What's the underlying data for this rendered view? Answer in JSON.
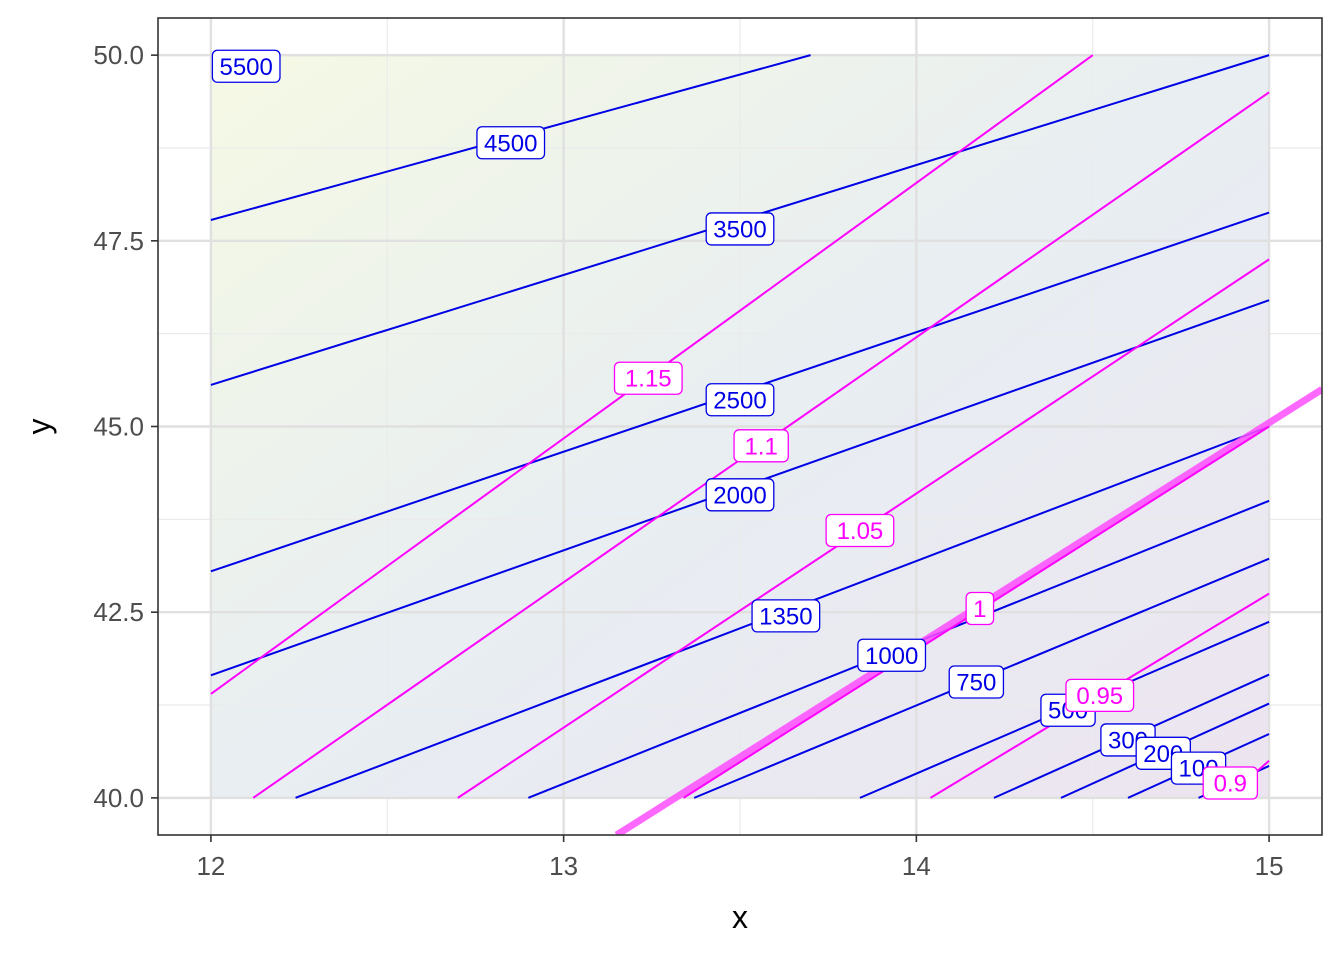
{
  "chart_data": {
    "type": "contour",
    "xlabel": "x",
    "ylabel": "y",
    "xlim": [
      11.85,
      15.15
    ],
    "ylim": [
      39.5,
      50.5
    ],
    "x_ticks": [
      12,
      13,
      14,
      15
    ],
    "x_tick_labels": [
      "12",
      "13",
      "14",
      "15"
    ],
    "y_ticks": [
      40,
      42.5,
      45,
      47.5,
      50
    ],
    "y_tick_labels": [
      "40.0",
      "42.5",
      "45.0",
      "47.5",
      "50.0"
    ],
    "grid": true,
    "theme": "bw",
    "background_gradient": {
      "top_left": "#f5f9e4",
      "middle": "#e8eef2",
      "bottom_right": "#ece4f0"
    },
    "colors": {
      "blue_series": "#0000e6",
      "magenta_series": "#ff00ff",
      "highlight": "#ff4dff"
    },
    "series": [
      {
        "group": "blue",
        "contours": [
          {
            "label": "5500",
            "points": [
              [
                12,
                49.9
              ]
            ],
            "label_at": [
              12.1,
              49.85
            ]
          },
          {
            "label": "4500",
            "points": [
              [
                12,
                47.78
              ],
              [
                13.7,
                50
              ]
            ],
            "label_at": [
              12.85,
              48.82
            ]
          },
          {
            "label": "3500",
            "points": [
              [
                12,
                45.56
              ],
              [
                15,
                50
              ]
            ],
            "label_at": [
              13.5,
              47.66
            ]
          },
          {
            "label": "2500",
            "points": [
              [
                12,
                43.05
              ],
              [
                15,
                47.88
              ]
            ],
            "label_at": [
              13.5,
              45.36
            ]
          },
          {
            "label": "2000",
            "points": [
              [
                12,
                41.65
              ],
              [
                15,
                46.7
              ]
            ],
            "label_at": [
              13.5,
              44.08
            ]
          },
          {
            "label": "1350",
            "points": [
              [
                12.24,
                40
              ],
              [
                15,
                45
              ]
            ],
            "label_at": [
              13.63,
              42.45
            ]
          },
          {
            "label": "1000",
            "points": [
              [
                12.9,
                40
              ],
              [
                15,
                44
              ]
            ],
            "label_at": [
              13.93,
              41.92
            ]
          },
          {
            "label": "750",
            "points": [
              [
                13.37,
                40
              ],
              [
                15,
                43.22
              ]
            ],
            "label_at": [
              14.17,
              41.56
            ]
          },
          {
            "label": "500",
            "points": [
              [
                13.84,
                40
              ],
              [
                15,
                42.37
              ]
            ],
            "label_at": [
              14.43,
              41.18
            ]
          },
          {
            "label": "300",
            "points": [
              [
                14.22,
                40
              ],
              [
                15,
                41.66
              ]
            ],
            "label_at": [
              14.6,
              40.78
            ]
          },
          {
            "label": "200",
            "points": [
              [
                14.41,
                40
              ],
              [
                15,
                41.27
              ]
            ],
            "label_at": [
              14.7,
              40.6
            ]
          },
          {
            "label": "100",
            "points": [
              [
                14.6,
                40
              ],
              [
                15,
                40.86
              ]
            ],
            "label_at": [
              14.8,
              40.4
            ]
          },
          {
            "label": "",
            "points": [
              [
                14.8,
                40
              ],
              [
                15,
                40.43
              ]
            ]
          }
        ]
      },
      {
        "group": "magenta",
        "contours": [
          {
            "label": "1.15",
            "points": [
              [
                12,
                41.4
              ],
              [
                14.5,
                50
              ]
            ],
            "label_at": [
              13.24,
              45.65
            ]
          },
          {
            "label": "1.1",
            "points": [
              [
                12.12,
                40
              ],
              [
                15,
                49.5
              ]
            ],
            "label_at": [
              13.56,
              44.74
            ]
          },
          {
            "label": "1.05",
            "points": [
              [
                12.7,
                40
              ],
              [
                15,
                47.25
              ]
            ],
            "label_at": [
              13.84,
              43.6
            ]
          },
          {
            "label": "1",
            "points": [
              [
                13.15,
                39.5
              ],
              [
                15.15,
                45.5
              ]
            ],
            "label_at": [
              14.18,
              42.55
            ],
            "highlight": true
          },
          {
            "label": "1",
            "points": [
              [
                13.34,
                40
              ],
              [
                15,
                45
              ]
            ]
          },
          {
            "label": "0.95",
            "points": [
              [
                14.04,
                40
              ],
              [
                15,
                42.75
              ]
            ],
            "label_at": [
              14.52,
              41.38
            ]
          },
          {
            "label": "0.9",
            "points": [
              [
                14.88,
                40
              ],
              [
                15,
                40.5
              ]
            ],
            "label_at": [
              14.89,
              40.2
            ]
          }
        ]
      }
    ]
  }
}
